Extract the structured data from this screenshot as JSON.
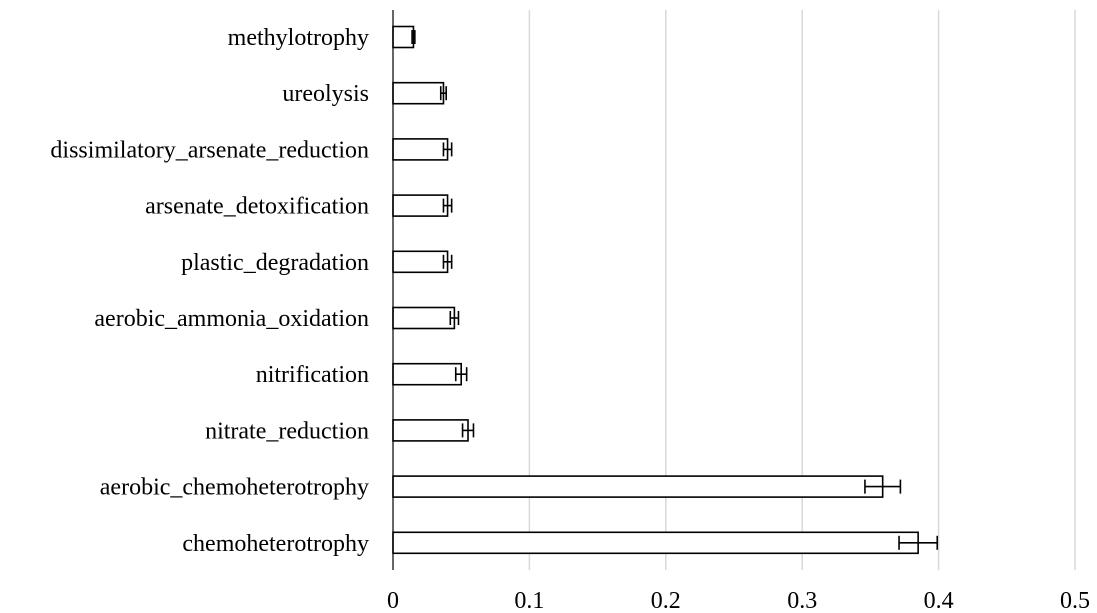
{
  "chart_data": {
    "type": "bar",
    "orientation": "horizontal",
    "categories": [
      "methylotrophy",
      "ureolysis",
      "dissimilatory_arsenate_reduction",
      "arsenate_detoxification",
      "plastic_degradation",
      "aerobic_ammonia_oxidation",
      "nitrification",
      "nitrate_reduction",
      "aerobic_chemoheterotrophy",
      "chemoheterotrophy"
    ],
    "values": [
      0.015,
      0.037,
      0.04,
      0.04,
      0.04,
      0.045,
      0.05,
      0.055,
      0.359,
      0.385
    ],
    "errors": [
      0.001,
      0.002,
      0.003,
      0.003,
      0.003,
      0.003,
      0.004,
      0.004,
      0.013,
      0.014
    ],
    "xlim": [
      0,
      0.5
    ],
    "xticks": [
      "0",
      "0.1",
      "0.2",
      "0.3",
      "0.4",
      "0.5"
    ],
    "xtick_values": [
      0,
      0.1,
      0.2,
      0.3,
      0.4,
      0.5
    ],
    "grid": "vertical",
    "bar_fill": "#ffffff",
    "bar_stroke": "#000000",
    "grid_color": "#d9d9d9"
  }
}
